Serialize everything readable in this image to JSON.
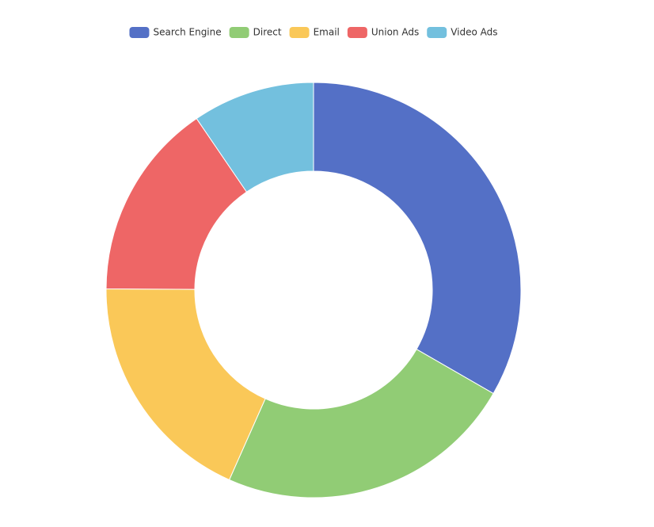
{
  "chart_data": {
    "type": "pie",
    "categories": [
      "Search Engine",
      "Direct",
      "Email",
      "Union Ads",
      "Video Ads"
    ],
    "values": [
      1048,
      735,
      580,
      484,
      300
    ],
    "colors": [
      "#5470c6",
      "#91cc75",
      "#fac858",
      "#ee6666",
      "#73c0de"
    ],
    "donut": true,
    "legend": "top"
  }
}
